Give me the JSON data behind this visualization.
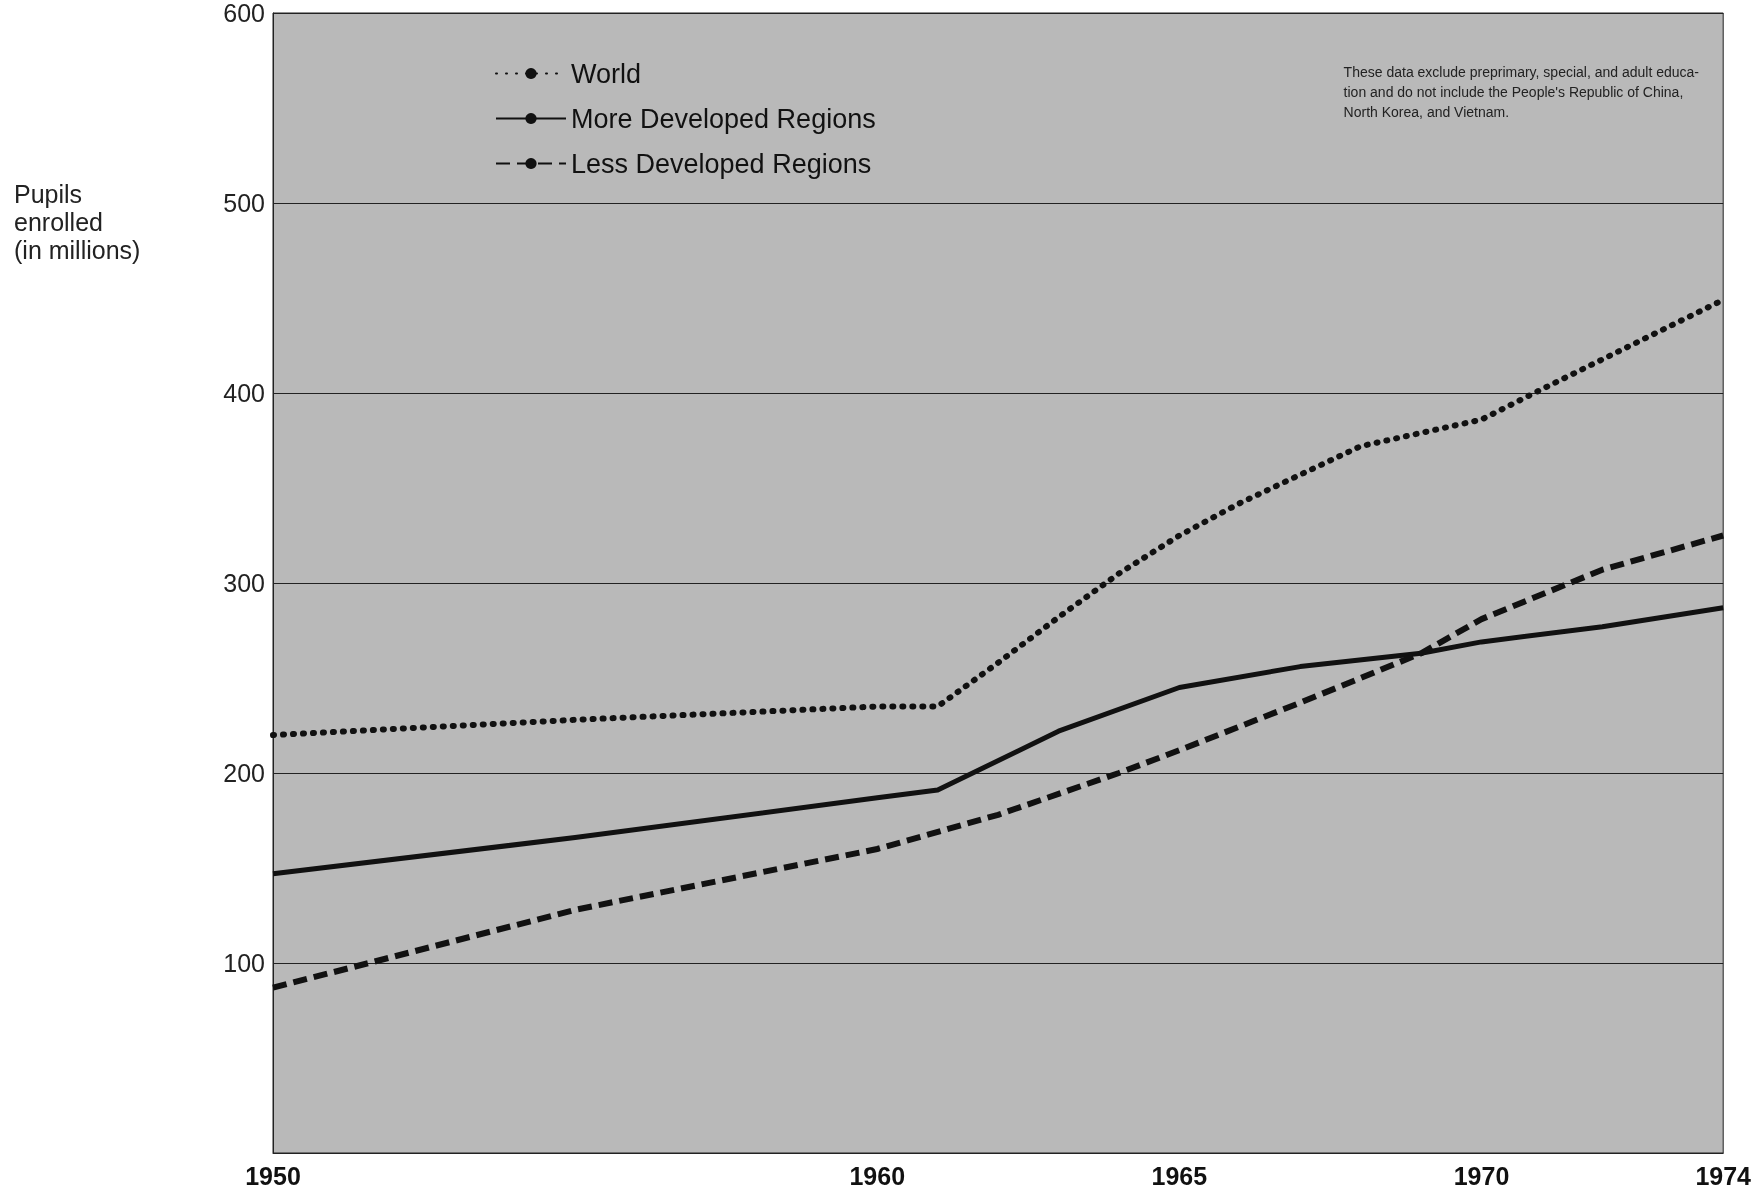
{
  "chart_data": {
    "type": "line",
    "ylabel": "Pupils\nenrolled\n(in millions)",
    "annotations": [
      "These data exclude preprimary, special, and adult educa-\ntion and do not include the People's Republic of China,\nNorth Korea, and Vietnam."
    ],
    "xlim": [
      1950,
      1974
    ],
    "xticks": [
      1950,
      1960,
      1965,
      1970,
      1974
    ],
    "ylim": [
      0,
      600
    ],
    "yticks": [
      100,
      200,
      300,
      400,
      500,
      600
    ],
    "grid": "y",
    "legend": "top left",
    "marker": "none",
    "series": [
      {
        "name": "World",
        "color": "#111111",
        "line_style": "dotted",
        "x": [
          1950,
          1955,
          1960,
          1961,
          1962,
          1963,
          1964,
          1965,
          1966,
          1968,
          1970,
          1971,
          1974
        ],
        "values": [
          220,
          228,
          235,
          235,
          258,
          282,
          305,
          325,
          342,
          372,
          386,
          402,
          449
        ]
      },
      {
        "name": "More Developed Regions",
        "color": "#111111",
        "line_style": "solid",
        "x": [
          1950,
          1955,
          1960,
          1961,
          1963,
          1965,
          1967,
          1969,
          1970,
          1972,
          1974
        ],
        "values": [
          147,
          166,
          187,
          191,
          222,
          245,
          256,
          263,
          269,
          277,
          287
        ]
      },
      {
        "name": "Less Developed Regions",
        "color": "#111111",
        "line_style": "dashed",
        "x": [
          1950,
          1955,
          1960,
          1962,
          1964,
          1965,
          1967,
          1969,
          1970,
          1972,
          1974
        ],
        "values": [
          87,
          128,
          160,
          178,
          200,
          212,
          237,
          263,
          281,
          307,
          325
        ]
      }
    ]
  }
}
